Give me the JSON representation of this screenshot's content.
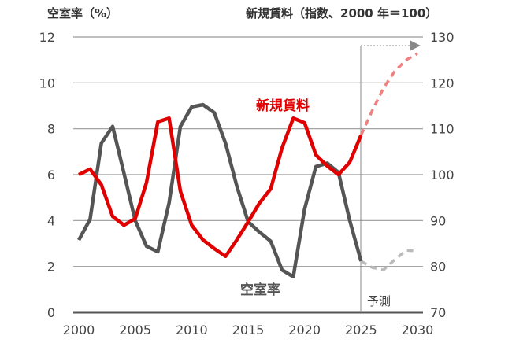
{
  "chart_data": {
    "type": "line",
    "left_axis": {
      "title": "空室率（%）",
      "ylim": [
        0,
        12
      ],
      "ticks": [
        "0",
        "2",
        "4",
        "6",
        "8",
        "10",
        "12"
      ]
    },
    "right_axis": {
      "title": "新規賃料（指数、2000 年＝100）",
      "ylim": [
        70,
        130
      ],
      "ticks": [
        "70",
        "80",
        "90",
        "100",
        "110",
        "120",
        "130"
      ]
    },
    "x_ticks": [
      "2000",
      "2005",
      "2010",
      "2015",
      "2020",
      "2025",
      "2030"
    ],
    "xlim": [
      2000,
      2030
    ],
    "grid": true,
    "forecast_label": "予測",
    "forecast_start": 2025,
    "series": [
      {
        "name": "新規賃料",
        "axis": "right",
        "color": "#e00000",
        "forecast_color": "#f08080",
        "x": [
          2000,
          2001,
          2002,
          2003,
          2004,
          2005,
          2006,
          2007,
          2008,
          2009,
          2010,
          2011,
          2012,
          2013,
          2014,
          2015,
          2016,
          2017,
          2018,
          2019,
          2020,
          2021,
          2022,
          2023,
          2024,
          2025
        ],
        "values": [
          100,
          101.2,
          97.8,
          90.9,
          89,
          90.4,
          98.3,
          111.5,
          112.3,
          96.4,
          89,
          85.8,
          83.9,
          82.2,
          85.8,
          89.7,
          93.8,
          96.9,
          105.8,
          112.3,
          111.3,
          104.3,
          101.9,
          100,
          102.7,
          108.6
        ],
        "forecast_x": [
          2025,
          2026,
          2027,
          2028,
          2029,
          2030
        ],
        "forecast_values": [
          108.6,
          114,
          118.9,
          122.6,
          125,
          126.4
        ]
      },
      {
        "name": "空室率",
        "axis": "left",
        "color": "#555555",
        "forecast_color": "#bbbbbb",
        "x": [
          2000,
          2001,
          2002,
          2003,
          2004,
          2005,
          2006,
          2007,
          2008,
          2009,
          2010,
          2011,
          2012,
          2013,
          2014,
          2015,
          2016,
          2017,
          2018,
          2019,
          2020,
          2021,
          2022,
          2023,
          2024,
          2025
        ],
        "values": [
          3.15,
          4.05,
          7.37,
          8.1,
          6.07,
          4.0,
          2.88,
          2.64,
          4.77,
          8.1,
          8.95,
          9.05,
          8.7,
          7.37,
          5.5,
          3.95,
          3.5,
          3.1,
          1.85,
          1.55,
          4.5,
          6.35,
          6.5,
          6.1,
          4.0,
          2.23
        ],
        "forecast_x": [
          2025,
          2026,
          2027,
          2028,
          2029,
          2030
        ],
        "forecast_values": [
          2.23,
          1.95,
          1.85,
          2.3,
          2.7,
          2.67
        ]
      }
    ]
  }
}
